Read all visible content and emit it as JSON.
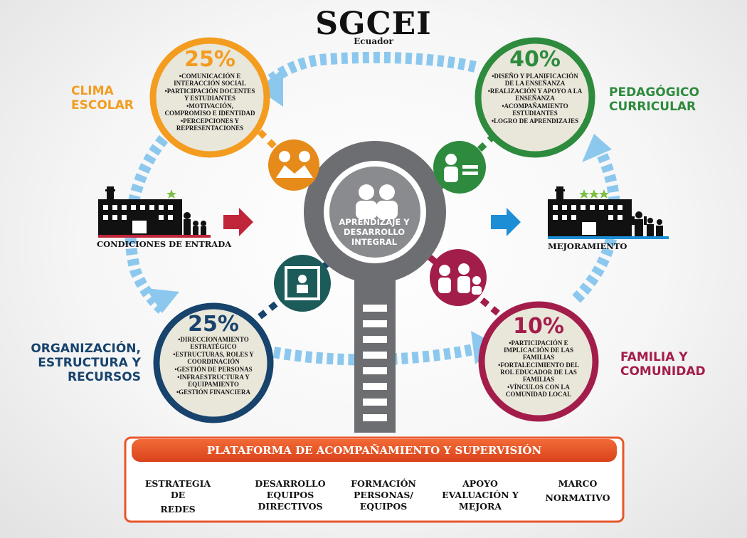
{
  "header": {
    "title": "SGCEI",
    "subtitle": "Ecuador"
  },
  "center": {
    "label": "APRENDIZAJE Y DESARROLLO INTEGRAL"
  },
  "dimensions": {
    "clima": {
      "label_line1": "CLIMA",
      "label_line2": "ESCOLAR",
      "percent": "25%",
      "color": "#f39c1f",
      "items": [
        "•COMUNICACIÓN E INTERACCIÓN SOCIAL",
        "•PARTICIPACIÓN DOCENTES Y ESTUDIANTES",
        "•MOTIVACIÓN, COMPROMISO E IDENTIDAD",
        "•PERCEPCIONES Y REPRESENTACIONES"
      ]
    },
    "pedagogico": {
      "label_line1": "PEDAGÓGICO",
      "label_line2": "CURRICULAR",
      "percent": "40%",
      "color": "#2e8b3e",
      "items": [
        "•DISEÑO Y PLANIFICACIÓN DE LA ENSEÑANZA",
        "•REALIZACIÓN Y APOYO A LA ENSEÑANZA",
        "•ACOMPAÑAMIENTO ESTUDIANTES",
        "•LOGRO DE APRENDIZAJES"
      ]
    },
    "organizacion": {
      "label_line1": "ORGANIZACIÓN,",
      "label_line2": "ESTRUCTURA Y",
      "label_line3": "RECURSOS",
      "percent": "25%",
      "color": "#17436c",
      "items": [
        "•DIRECCIONAMIENTO ESTRATÉGICO",
        "•ESTRUCTURAS, ROLES Y COORDINACIÓN",
        "•GESTIÓN DE PERSONAS",
        "•INFRAESTRUCTURA Y EQUIPAMIENTO",
        "•GESTIÓN FINANCIERA"
      ]
    },
    "familia": {
      "label_line1": "FAMILIA Y",
      "label_line2": "COMUNIDAD",
      "percent": "10%",
      "color": "#a31d4b",
      "items": [
        "•PARTICIPACIÓN E IMPLICACIÓN DE LAS FAMILIAS",
        "•FORTALECIMIENTO DEL ROL EDUCADOR DE LAS FAMILIAS",
        "•VÍNCULOS CON LA COMUNIDAD LOCAL"
      ]
    }
  },
  "sides": {
    "left_caption": "CONDICIONES DE ENTRADA",
    "right_caption": "MEJORAMIENTO"
  },
  "platform": {
    "title": "PLATAFORMA DE ACOMPAÑAMIENTO Y SUPERVISIÓN",
    "items": [
      {
        "line1": "ESTRATEGIA DE",
        "line2": "REDES",
        "line3": ""
      },
      {
        "line1": "DESARROLLO",
        "line2": "EQUIPOS",
        "line3": "DIRECTIVOS"
      },
      {
        "line1": "FORMACIÓN",
        "line2": "PERSONAS/",
        "line3": "EQUIPOS"
      },
      {
        "line1": "APOYO",
        "line2": "EVALUACIÓN Y",
        "line3": "MEJORA"
      },
      {
        "line1": "MARCO",
        "line2": "NORMATIVO",
        "line3": ""
      }
    ]
  },
  "colors": {
    "light_blue": "#8cc8ee",
    "gray": "#6d6e71",
    "arrow_red": "#c0253a",
    "arrow_blue": "#1c8ed6",
    "platform_red": "#e8562a"
  }
}
